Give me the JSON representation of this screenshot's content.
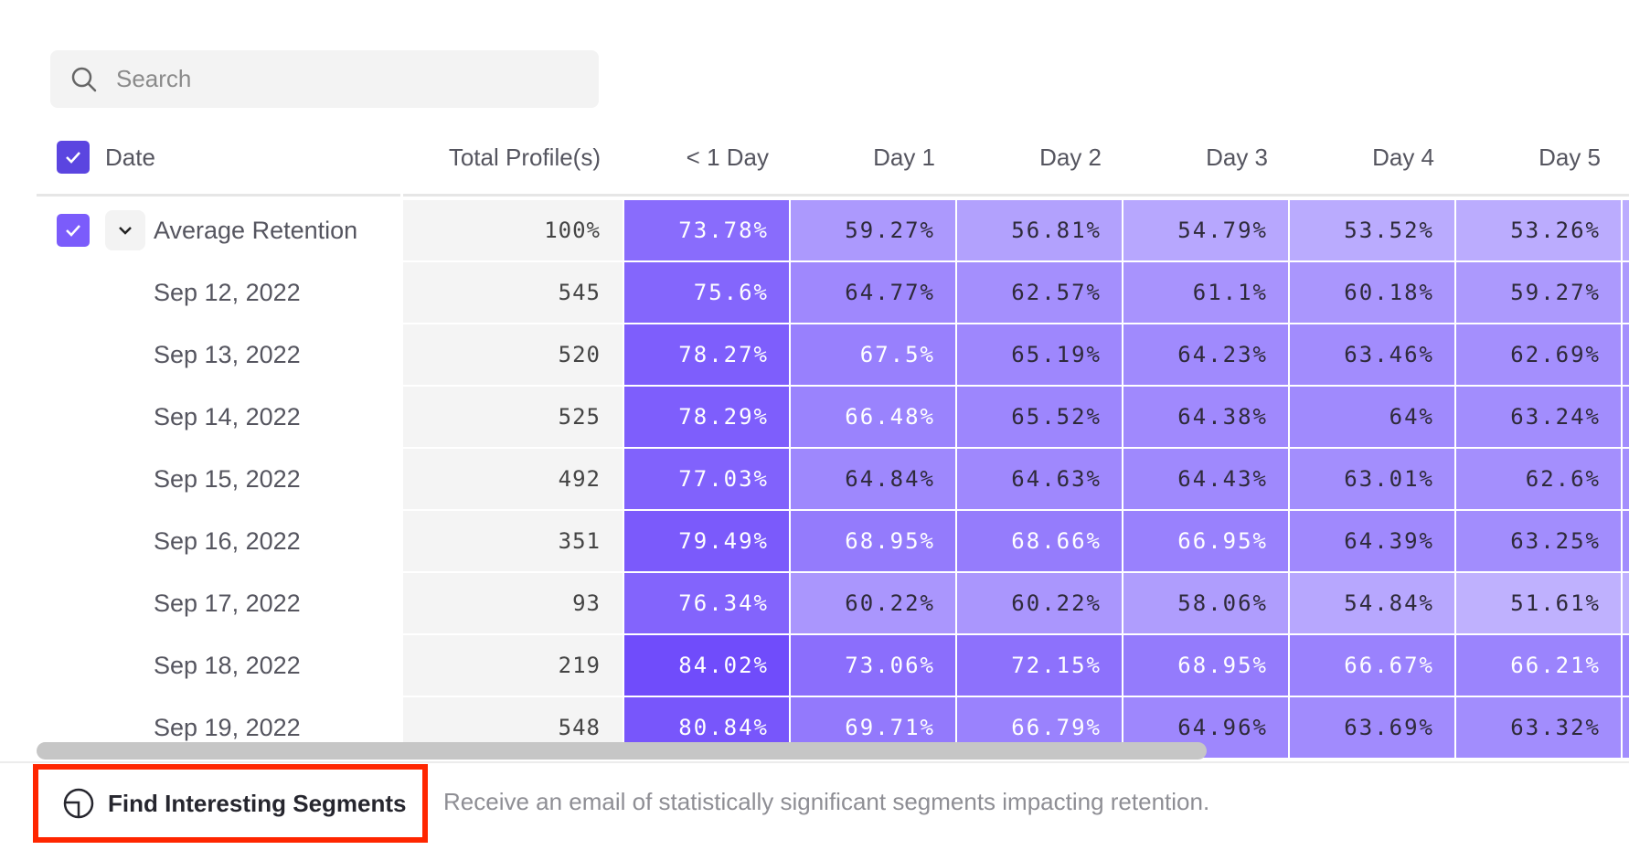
{
  "search": {
    "placeholder": "Search",
    "icon": "search-icon"
  },
  "table": {
    "headers": {
      "date": "Date",
      "total": "Total Profile(s)",
      "days": [
        "< 1 Day",
        "Day 1",
        "Day 2",
        "Day 3",
        "Day 4",
        "Day 5"
      ]
    },
    "header_checked": true,
    "average": {
      "label": "Average Retention",
      "checked": true,
      "expanded": true,
      "total": "100%",
      "values": [
        "73.78%",
        "59.27%",
        "56.81%",
        "54.79%",
        "53.52%",
        "53.26%"
      ]
    },
    "rows": [
      {
        "date": "Sep 12, 2022",
        "total": "545",
        "values": [
          "75.6%",
          "64.77%",
          "62.57%",
          "61.1%",
          "60.18%",
          "59.27%"
        ]
      },
      {
        "date": "Sep 13, 2022",
        "total": "520",
        "values": [
          "78.27%",
          "67.5%",
          "65.19%",
          "64.23%",
          "63.46%",
          "62.69%"
        ]
      },
      {
        "date": "Sep 14, 2022",
        "total": "525",
        "values": [
          "78.29%",
          "66.48%",
          "65.52%",
          "64.38%",
          "64%",
          "63.24%"
        ]
      },
      {
        "date": "Sep 15, 2022",
        "total": "492",
        "values": [
          "77.03%",
          "64.84%",
          "64.63%",
          "64.43%",
          "63.01%",
          "62.6%"
        ]
      },
      {
        "date": "Sep 16, 2022",
        "total": "351",
        "values": [
          "79.49%",
          "68.95%",
          "68.66%",
          "66.95%",
          "64.39%",
          "63.25%"
        ]
      },
      {
        "date": "Sep 17, 2022",
        "total": "93",
        "values": [
          "76.34%",
          "60.22%",
          "60.22%",
          "58.06%",
          "54.84%",
          "51.61%"
        ]
      },
      {
        "date": "Sep 18, 2022",
        "total": "219",
        "values": [
          "84.02%",
          "73.06%",
          "72.15%",
          "68.95%",
          "66.67%",
          "66.21%"
        ]
      },
      {
        "date": "Sep 19, 2022",
        "total": "548",
        "values": [
          "80.84%",
          "69.71%",
          "66.79%",
          "64.96%",
          "63.69%",
          "63.32%"
        ]
      }
    ]
  },
  "colors": {
    "accent": "#5b45e0",
    "checkbox": "#7b5cfb",
    "cell_light": "#bcaefe",
    "cell_dark": "#7450fb",
    "highlight_border": "#ff2600"
  },
  "footer": {
    "button_label": "Find Interesting Segments",
    "button_icon": "segments-icon",
    "description": "Receive an email of statistically significant segments impacting retention."
  }
}
